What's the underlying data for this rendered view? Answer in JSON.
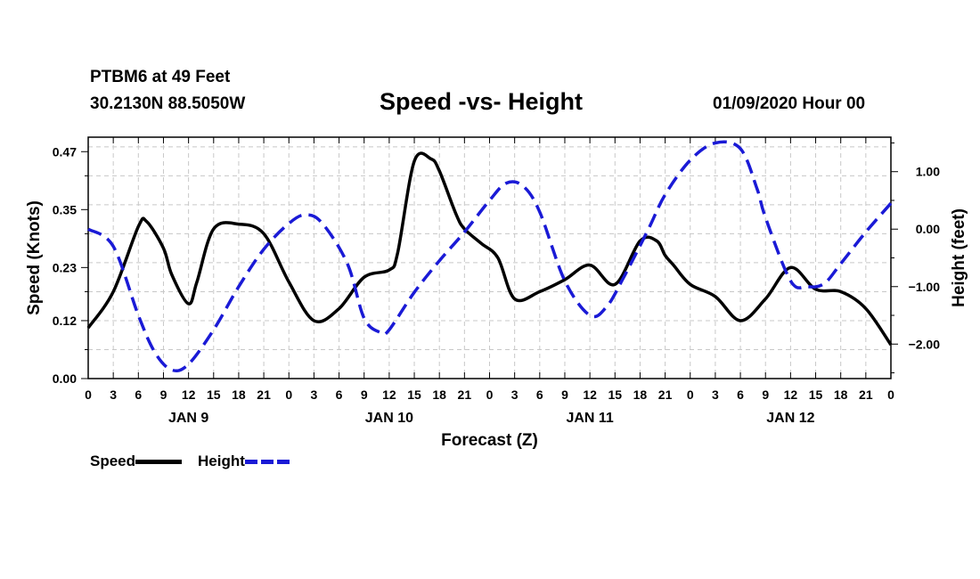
{
  "header": {
    "station": "PTBM6 at 49 Feet",
    "coords": "30.2130N 88.5050W",
    "title": "Speed -vs- Height",
    "datetime": "01/09/2020 Hour 00"
  },
  "chart_data": {
    "type": "line",
    "title": "Speed -vs- Height",
    "xlabel": "Forecast (Z)",
    "ylabel_left": "Speed (Knots)",
    "ylabel_right": "Height (feet)",
    "x_range_hours": [
      0,
      96
    ],
    "x_tick_hours": [
      0,
      3,
      6,
      9,
      12,
      15,
      18,
      21,
      24,
      27,
      30,
      33,
      36,
      39,
      42,
      45,
      48,
      51,
      54,
      57,
      60,
      63,
      66,
      69,
      72,
      75,
      78,
      81,
      84,
      87,
      90,
      93,
      96
    ],
    "x_tick_labels": [
      "0",
      "3",
      "6",
      "9",
      "12",
      "15",
      "18",
      "21",
      "0",
      "3",
      "6",
      "9",
      "12",
      "15",
      "18",
      "21",
      "0",
      "3",
      "6",
      "9",
      "12",
      "15",
      "18",
      "21",
      "0",
      "3",
      "6",
      "9",
      "12",
      "15",
      "18",
      "21",
      "0"
    ],
    "day_labels": [
      {
        "label": "JAN 9",
        "hour": 12
      },
      {
        "label": "JAN 10",
        "hour": 36
      },
      {
        "label": "JAN 11",
        "hour": 60
      },
      {
        "label": "JAN 12",
        "hour": 84
      }
    ],
    "y_left_range": [
      0.0,
      0.5
    ],
    "y_left_ticks": [
      0.0,
      0.12,
      0.23,
      0.35,
      0.47
    ],
    "y_left_tick_labels": [
      "0.00",
      "0.12",
      "0.23",
      "0.35",
      "0.47"
    ],
    "y_right_range": [
      -2.6,
      1.6
    ],
    "y_right_ticks": [
      1.0,
      0.0,
      -1.0,
      -2.0
    ],
    "y_right_tick_labels": [
      "1.00",
      "0.00",
      "−1.00",
      "−2.00"
    ],
    "grid": true,
    "series": [
      {
        "name": "Speed",
        "axis": "left",
        "color": "#000000",
        "style": "solid",
        "x": [
          0,
          3,
          6,
          7,
          9,
          10,
          12,
          13,
          15,
          18,
          21,
          24,
          27,
          30,
          33,
          36,
          37,
          39,
          41,
          42,
          44,
          45,
          47,
          49,
          51,
          54,
          57,
          60,
          63,
          66,
          68,
          69,
          70,
          72,
          75,
          78,
          81,
          84,
          87,
          90,
          93,
          96
        ],
        "values": [
          0.105,
          0.18,
          0.315,
          0.325,
          0.27,
          0.215,
          0.155,
          0.2,
          0.31,
          0.32,
          0.3,
          0.2,
          0.12,
          0.145,
          0.21,
          0.225,
          0.26,
          0.45,
          0.455,
          0.43,
          0.34,
          0.31,
          0.28,
          0.25,
          0.165,
          0.18,
          0.205,
          0.235,
          0.195,
          0.285,
          0.285,
          0.255,
          0.235,
          0.195,
          0.17,
          0.12,
          0.165,
          0.23,
          0.185,
          0.18,
          0.145,
          0.07
        ]
      },
      {
        "name": "Height",
        "axis": "right",
        "color": "#1a1ad6",
        "style": "dashed",
        "x": [
          0,
          3,
          6,
          8,
          10,
          12,
          15,
          18,
          21,
          24,
          26,
          28,
          31,
          33,
          35,
          36,
          39,
          42,
          45,
          48,
          50,
          52,
          54,
          57,
          60,
          62,
          64,
          67,
          69,
          72,
          75,
          78,
          80,
          81,
          84,
          86,
          88,
          90,
          93,
          96
        ],
        "values": [
          0.0,
          -0.3,
          -1.5,
          -2.15,
          -2.45,
          -2.35,
          -1.75,
          -1.0,
          -0.35,
          0.1,
          0.25,
          0.1,
          -0.6,
          -1.55,
          -1.8,
          -1.75,
          -1.1,
          -0.55,
          -0.05,
          0.5,
          0.8,
          0.75,
          0.3,
          -0.9,
          -1.5,
          -1.35,
          -0.85,
          0.0,
          0.6,
          1.2,
          1.5,
          1.4,
          0.7,
          0.2,
          -0.9,
          -1.0,
          -0.95,
          -0.6,
          -0.05,
          0.45
        ]
      }
    ]
  },
  "legend": {
    "items": [
      {
        "label": "Speed"
      },
      {
        "label": "Height"
      }
    ]
  }
}
